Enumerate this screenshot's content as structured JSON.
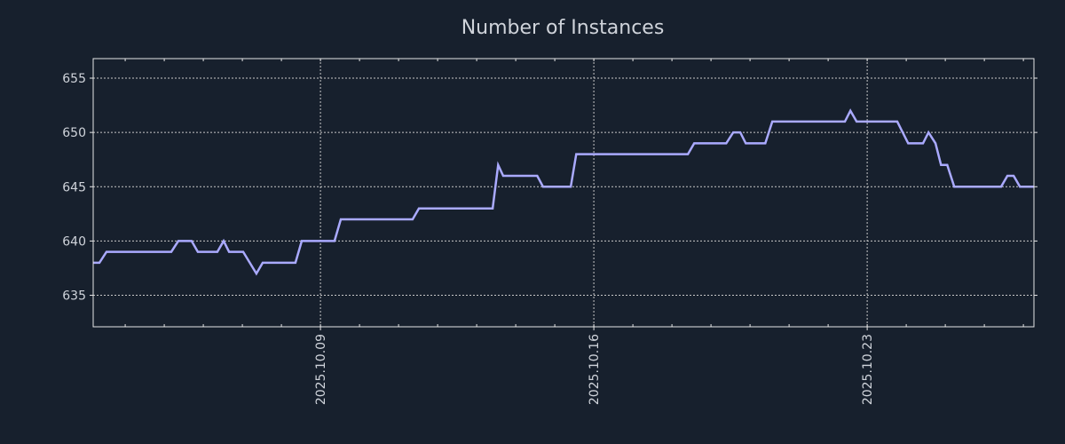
{
  "chart_data": {
    "type": "line",
    "title": "Number of Instances",
    "xlabel": "",
    "ylabel": "",
    "x_unit": "day of October 2025",
    "xlim": [
      3.18,
      27.27
    ],
    "ylim": [
      632.1,
      656.8
    ],
    "grid": true,
    "yticks": [
      635,
      640,
      645,
      650,
      655
    ],
    "xticks": [
      {
        "value": 9,
        "label": "2025.10.09"
      },
      {
        "value": 16,
        "label": "2025.10.16"
      },
      {
        "value": 23,
        "label": "2025.10.23"
      }
    ],
    "x_minor_tick_step_days": 1,
    "series": [
      {
        "name": "Number of Instances",
        "color": "#aaaaff",
        "points": [
          [
            3.18,
            638
          ],
          [
            3.34,
            638
          ],
          [
            3.52,
            639
          ],
          [
            5.18,
            639
          ],
          [
            5.36,
            640
          ],
          [
            5.7,
            640
          ],
          [
            5.86,
            639
          ],
          [
            6.36,
            639
          ],
          [
            6.52,
            640
          ],
          [
            6.66,
            639
          ],
          [
            7.02,
            639
          ],
          [
            7.36,
            637
          ],
          [
            7.52,
            638
          ],
          [
            8.36,
            638
          ],
          [
            8.52,
            640
          ],
          [
            9.36,
            640
          ],
          [
            9.52,
            642
          ],
          [
            11.36,
            642
          ],
          [
            11.52,
            643
          ],
          [
            13.41,
            643
          ],
          [
            13.55,
            647
          ],
          [
            13.68,
            646
          ],
          [
            14.55,
            646
          ],
          [
            14.7,
            645
          ],
          [
            15.41,
            645
          ],
          [
            15.55,
            648
          ],
          [
            18.41,
            648
          ],
          [
            18.57,
            649
          ],
          [
            19.39,
            649
          ],
          [
            19.57,
            650
          ],
          [
            19.75,
            650
          ],
          [
            19.89,
            649
          ],
          [
            20.39,
            649
          ],
          [
            20.57,
            651
          ],
          [
            22.43,
            651
          ],
          [
            22.57,
            652
          ],
          [
            22.73,
            651
          ],
          [
            23.77,
            651
          ],
          [
            24.05,
            649
          ],
          [
            24.43,
            649
          ],
          [
            24.57,
            650
          ],
          [
            24.75,
            649
          ],
          [
            24.89,
            647
          ],
          [
            25.05,
            647
          ],
          [
            25.23,
            645
          ],
          [
            26.43,
            645
          ],
          [
            26.59,
            646
          ],
          [
            26.75,
            646
          ],
          [
            26.91,
            645
          ],
          [
            27.27,
            645
          ]
        ]
      }
    ]
  },
  "colors": {
    "background": "#17202d",
    "line": "#aaaaff",
    "text": "#cfd3da",
    "grid": "#c8c8c8"
  }
}
